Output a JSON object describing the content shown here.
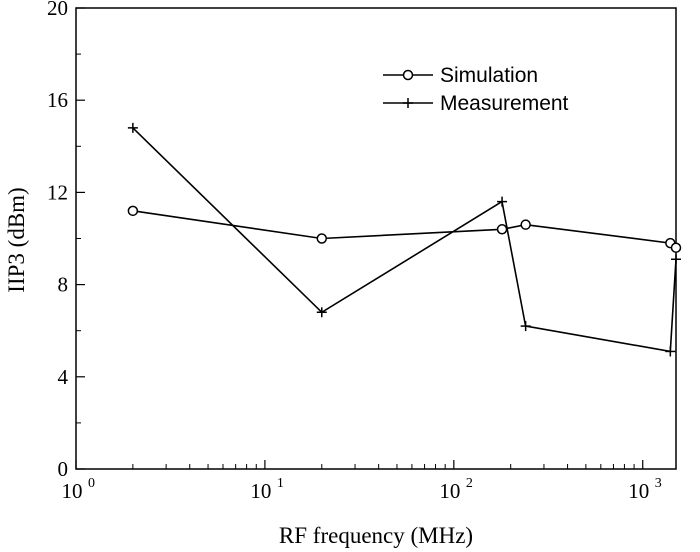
{
  "chart_data": {
    "type": "line",
    "title": "",
    "xlabel": "RF frequency (MHz)",
    "ylabel": "IIP3 (dBm)",
    "xscale": "log",
    "xlim": [
      1,
      1500
    ],
    "ylim": [
      0,
      20
    ],
    "x_ticks": [
      {
        "value": 1,
        "base": "10",
        "exp": "0"
      },
      {
        "value": 10,
        "base": "10",
        "exp": "1"
      },
      {
        "value": 100,
        "base": "10",
        "exp": "2"
      },
      {
        "value": 1000,
        "base": "10",
        "exp": "3"
      }
    ],
    "y_ticks": [
      "0",
      "4",
      "8",
      "12",
      "16",
      "20"
    ],
    "grid": false,
    "legend_position": "top-right",
    "series": [
      {
        "name": "Simulation",
        "marker": "circle",
        "color": "#000000",
        "x": [
          2,
          20,
          180,
          240,
          1400,
          1500
        ],
        "y": [
          11.2,
          10.0,
          10.4,
          10.6,
          9.8,
          9.6
        ]
      },
      {
        "name": "Measurement",
        "marker": "plus",
        "color": "#000000",
        "x": [
          2,
          20,
          180,
          240,
          1400,
          1500
        ],
        "y": [
          14.8,
          6.8,
          11.6,
          6.2,
          5.1,
          9.1
        ]
      }
    ]
  }
}
